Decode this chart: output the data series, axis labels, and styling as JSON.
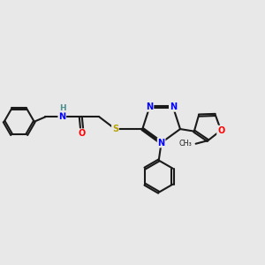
{
  "bg_color": "#e8e8e8",
  "bond_color": "#1a1a1a",
  "bond_width": 1.5,
  "atom_colors": {
    "N": "#0000ff",
    "O": "#ff0000",
    "S": "#b8a000",
    "H": "#4a9090",
    "C": "#1a1a1a"
  },
  "font_size": 7.0
}
